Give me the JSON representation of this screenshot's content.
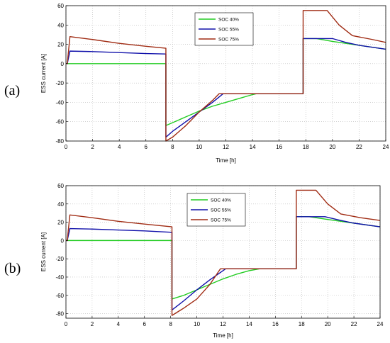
{
  "chart_data": [
    {
      "type": "line",
      "panel_label": "(a)",
      "xlabel": "Time [h]",
      "ylabel": "ESS current [A]",
      "xlim": [
        0,
        24
      ],
      "ylim": [
        -80,
        60
      ],
      "xticks": [
        0,
        2,
        4,
        6,
        8,
        10,
        12,
        14,
        16,
        18,
        20,
        22,
        24
      ],
      "yticks": [
        -80,
        -60,
        -40,
        -20,
        0,
        20,
        40,
        60
      ],
      "grid": true,
      "legend_position": "top-center",
      "series": [
        {
          "name": "SOC 40%",
          "color": "#22cc22",
          "points": [
            [
              0,
              0
            ],
            [
              0.1,
              0
            ],
            [
              7.5,
              0
            ],
            [
              7.5,
              -64
            ],
            [
              8,
              -61
            ],
            [
              9,
              -55
            ],
            [
              10,
              -49
            ],
            [
              11,
              -44
            ],
            [
              12,
              -40
            ],
            [
              13,
              -36
            ],
            [
              14,
              -32
            ],
            [
              14.3,
              -31
            ],
            [
              17.8,
              -31
            ],
            [
              17.8,
              26
            ],
            [
              18.8,
              26
            ],
            [
              20,
              23
            ],
            [
              22,
              19
            ],
            [
              24,
              15
            ]
          ]
        },
        {
          "name": "SOC 55%",
          "color": "#1010aa",
          "points": [
            [
              0,
              0
            ],
            [
              0.1,
              0
            ],
            [
              0.3,
              13
            ],
            [
              2,
              12.5
            ],
            [
              4,
              11.5
            ],
            [
              6,
              10.5
            ],
            [
              7.5,
              10
            ],
            [
              7.5,
              -76
            ],
            [
              8,
              -70
            ],
            [
              9,
              -60
            ],
            [
              10,
              -50
            ],
            [
              11,
              -40
            ],
            [
              11.8,
              -31
            ],
            [
              17.8,
              -31
            ],
            [
              17.8,
              26
            ],
            [
              20,
              26
            ],
            [
              21,
              22
            ],
            [
              22,
              19
            ],
            [
              24,
              15
            ]
          ]
        },
        {
          "name": "SOC 75%",
          "color": "#a02c14",
          "points": [
            [
              0,
              0
            ],
            [
              0.1,
              0
            ],
            [
              0.3,
              28
            ],
            [
              2,
              25
            ],
            [
              4,
              21
            ],
            [
              6,
              18
            ],
            [
              7.5,
              16
            ],
            [
              7.5,
              -80
            ],
            [
              8,
              -76
            ],
            [
              9,
              -64
            ],
            [
              10,
              -50
            ],
            [
              11,
              -38
            ],
            [
              11.5,
              -31
            ],
            [
              17.8,
              -31
            ],
            [
              17.8,
              55
            ],
            [
              19.6,
              55
            ],
            [
              20.5,
              40
            ],
            [
              21.5,
              29
            ],
            [
              23,
              25
            ],
            [
              24,
              22
            ]
          ]
        }
      ]
    },
    {
      "type": "line",
      "panel_label": "(b)",
      "xlabel": "Time [h]",
      "ylabel": "ESS current [A]",
      "xlim": [
        0,
        24
      ],
      "ylim": [
        -85,
        60
      ],
      "xticks": [
        0,
        2,
        4,
        6,
        8,
        10,
        12,
        14,
        16,
        18,
        20,
        22,
        24
      ],
      "yticks": [
        -80,
        -60,
        -40,
        -20,
        0,
        20,
        40,
        60
      ],
      "grid": true,
      "legend_position": "top-center",
      "series": [
        {
          "name": "SOC 40%",
          "color": "#22cc22",
          "points": [
            [
              0,
              0
            ],
            [
              0.1,
              0
            ],
            [
              8.1,
              0
            ],
            [
              8.1,
              -64
            ],
            [
              9,
              -60
            ],
            [
              10,
              -54
            ],
            [
              11,
              -48
            ],
            [
              12,
              -42
            ],
            [
              13,
              -37
            ],
            [
              14,
              -33
            ],
            [
              14.8,
              -31
            ],
            [
              17.6,
              -31
            ],
            [
              17.6,
              26
            ],
            [
              18.6,
              26
            ],
            [
              20,
              23
            ],
            [
              22,
              19
            ],
            [
              24,
              15
            ]
          ]
        },
        {
          "name": "SOC 55%",
          "color": "#1010aa",
          "points": [
            [
              0,
              0
            ],
            [
              0.1,
              0
            ],
            [
              0.3,
              13
            ],
            [
              2,
              12.5
            ],
            [
              4,
              11.5
            ],
            [
              6,
              10.5
            ],
            [
              8.1,
              9
            ],
            [
              8.1,
              -76
            ],
            [
              9,
              -66
            ],
            [
              10,
              -54
            ],
            [
              11,
              -43
            ],
            [
              12,
              -33
            ],
            [
              12.2,
              -31
            ],
            [
              17.6,
              -31
            ],
            [
              17.6,
              26
            ],
            [
              19.8,
              26
            ],
            [
              21,
              22
            ],
            [
              22,
              19
            ],
            [
              24,
              15
            ]
          ]
        },
        {
          "name": "SOC 75%",
          "color": "#a02c14",
          "points": [
            [
              0,
              0
            ],
            [
              0.1,
              0
            ],
            [
              0.3,
              28
            ],
            [
              2,
              25
            ],
            [
              4,
              21
            ],
            [
              6,
              18
            ],
            [
              8.1,
              15
            ],
            [
              8.1,
              -82
            ],
            [
              9,
              -74
            ],
            [
              10,
              -64
            ],
            [
              11,
              -48
            ],
            [
              11.8,
              -31
            ],
            [
              17.6,
              -31
            ],
            [
              17.6,
              55
            ],
            [
              19.1,
              55
            ],
            [
              20,
              40
            ],
            [
              21,
              29
            ],
            [
              22.5,
              25
            ],
            [
              24,
              22
            ]
          ]
        }
      ]
    }
  ]
}
